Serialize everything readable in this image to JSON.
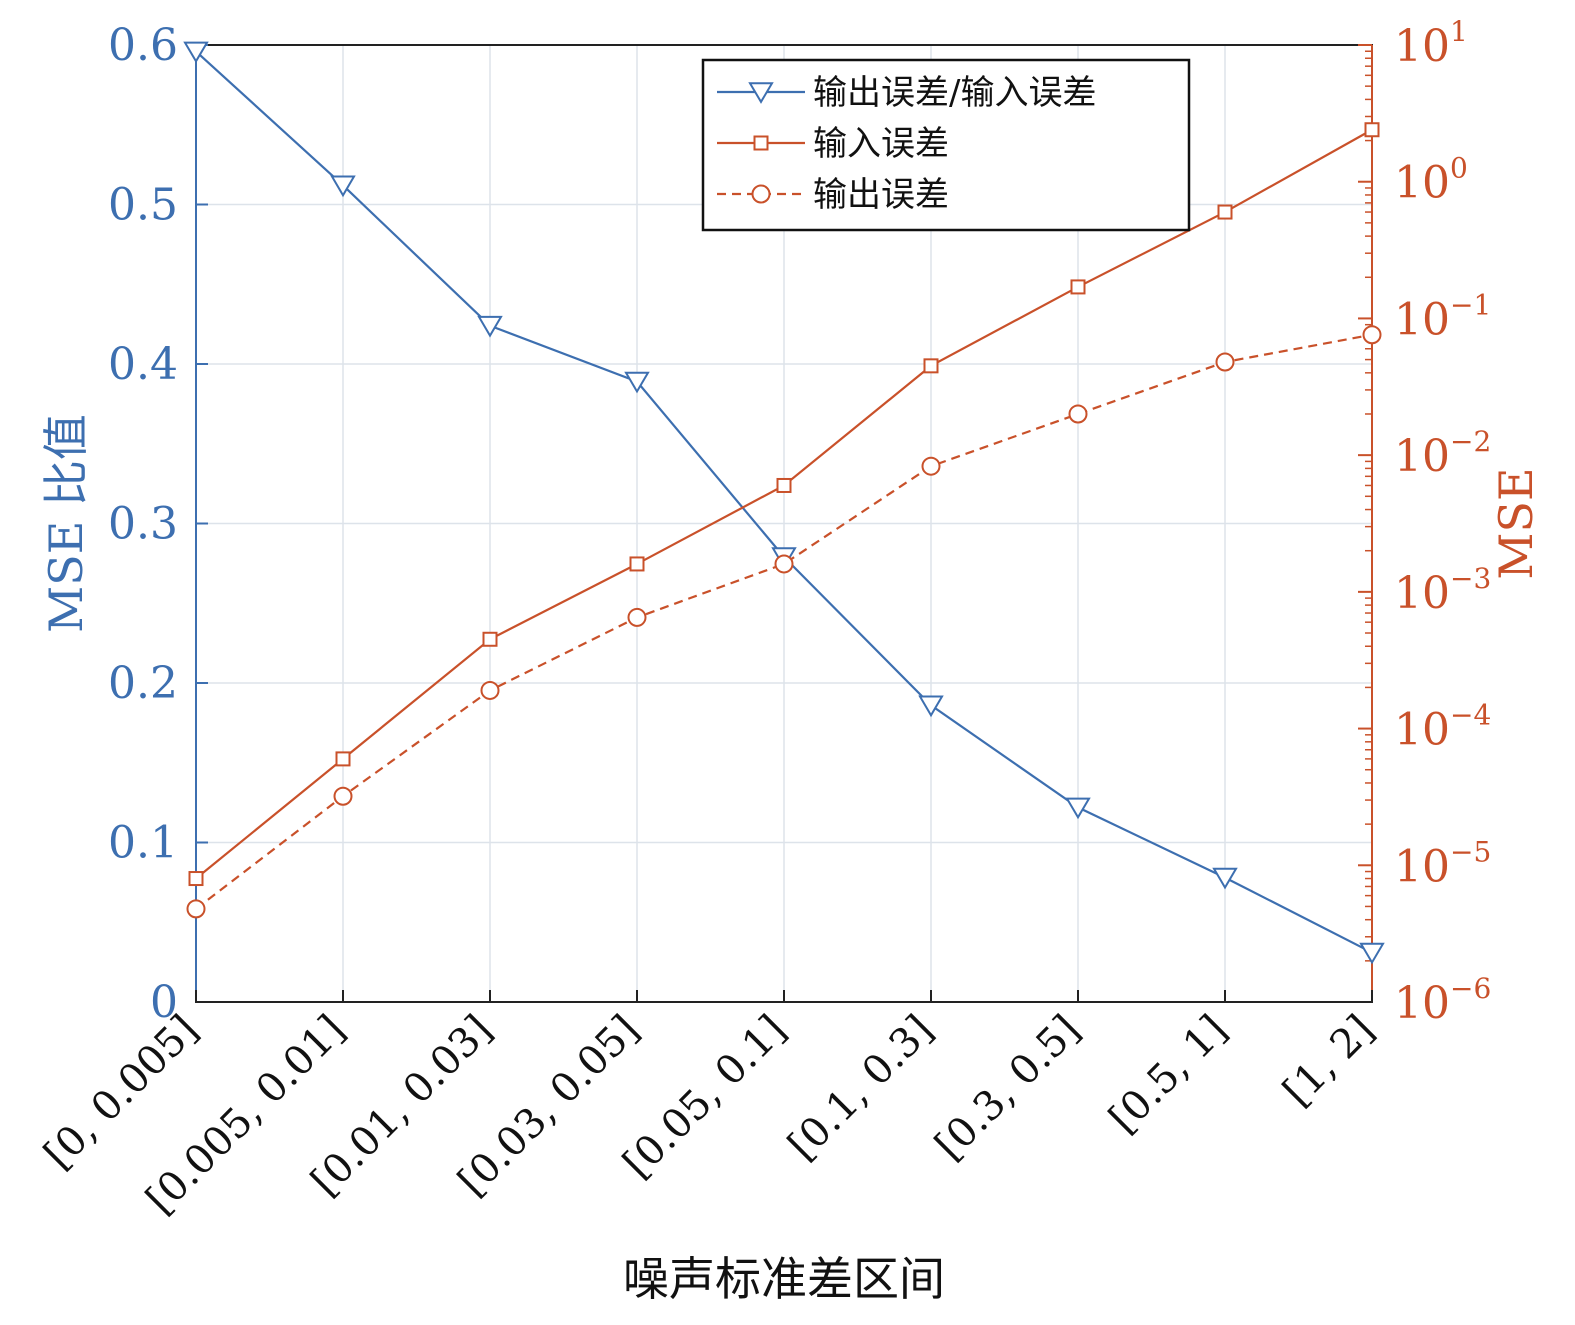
{
  "chart_data": {
    "type": "line",
    "xlabel": "噪声标准差区间",
    "ylabel_left": "MSE 比值",
    "ylabel_right": "MSE",
    "categories": [
      "[0, 0.005]",
      "[0.005, 0.01]",
      "[0.01, 0.03]",
      "[0.03, 0.05]",
      "[0.05, 0.1]",
      "[0.1, 0.3]",
      "[0.3, 0.5]",
      "[0.5, 1]",
      "[1, 2]"
    ],
    "ylim_left": [
      0,
      0.6
    ],
    "yticks_left": [
      "0",
      "0.1",
      "0.2",
      "0.3",
      "0.4",
      "0.5",
      "0.6"
    ],
    "ylim_right": [
      1e-06,
      10
    ],
    "yscale_right": "log",
    "yticks_right": [
      {
        "base": "10",
        "exp": "−6"
      },
      {
        "base": "10",
        "exp": "−5"
      },
      {
        "base": "10",
        "exp": "−4"
      },
      {
        "base": "10",
        "exp": "−3"
      },
      {
        "base": "10",
        "exp": "−2"
      },
      {
        "base": "10",
        "exp": "−1"
      },
      {
        "base": "10",
        "exp": "0"
      },
      {
        "base": "10",
        "exp": "1"
      }
    ],
    "grid": true,
    "legend_position": "top-center",
    "series": [
      {
        "name": "输出误差/输入误差",
        "axis": "left",
        "color": "#3d6fb0",
        "marker": "triangle-down",
        "dash": false,
        "values": [
          0.596,
          0.512,
          0.424,
          0.389,
          0.279,
          0.186,
          0.122,
          0.078,
          0.031
        ]
      },
      {
        "name": "输入误差",
        "axis": "right",
        "color": "#c9512a",
        "marker": "square",
        "dash": false,
        "values": [
          8e-06,
          6e-05,
          0.00045,
          0.0016,
          0.006,
          0.045,
          0.17,
          0.6,
          2.4
        ]
      },
      {
        "name": "输出误差",
        "axis": "right",
        "color": "#c9512a",
        "marker": "circle",
        "dash": true,
        "values": [
          4.8e-06,
          3.2e-05,
          0.00019,
          0.00065,
          0.0016,
          0.0083,
          0.02,
          0.048,
          0.076
        ]
      }
    ]
  }
}
